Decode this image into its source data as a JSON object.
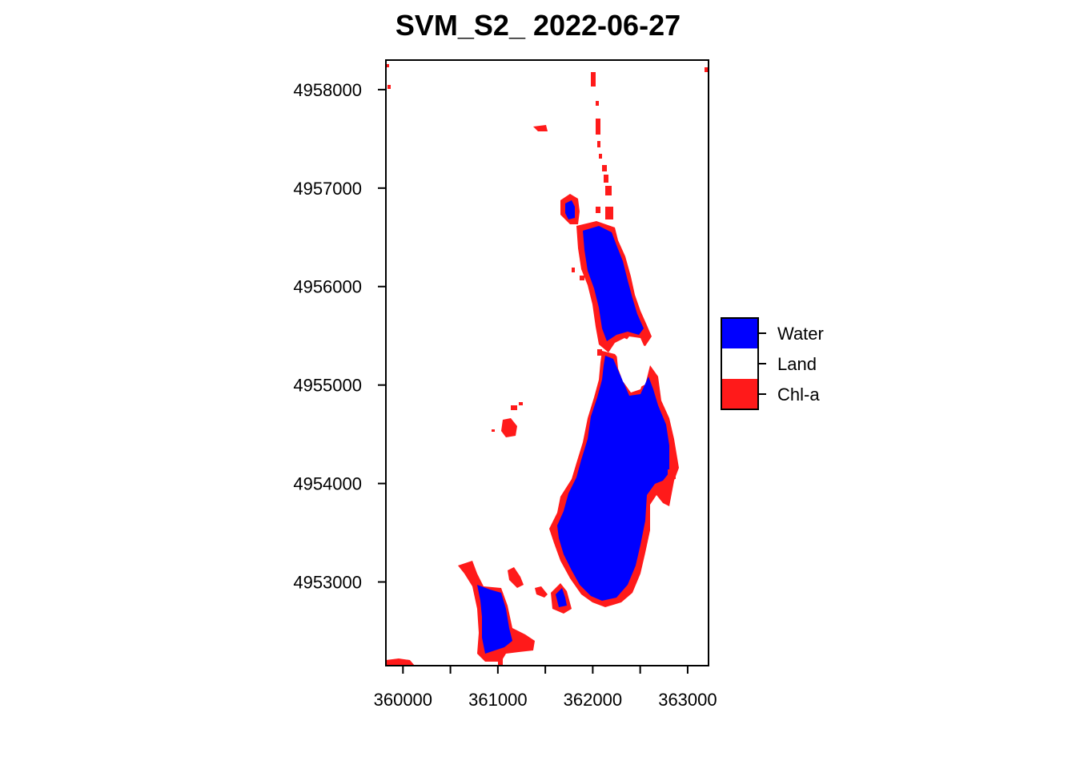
{
  "title": "SVM_S2_ 2022-06-27",
  "colors": {
    "water": "#0000FF",
    "land": "#FFFFFF",
    "chla": "#FF1A1A",
    "frame": "#000000"
  },
  "map": {
    "x_range": [
      359820,
      363220
    ],
    "y_range": [
      4952150,
      4958300
    ],
    "x_ticks": [
      360000,
      360500,
      361000,
      361500,
      362000,
      362500,
      363000
    ],
    "x_tick_labels": [
      "360000",
      "",
      "361000",
      "",
      "362000",
      "",
      "363000"
    ],
    "y_ticks": [
      4953000,
      4954000,
      4955000,
      4956000,
      4957000,
      4958000
    ],
    "y_tick_labels": [
      "4953000",
      "4954000",
      "4955000",
      "4956000",
      "4957000",
      "4958000"
    ]
  },
  "legend": {
    "items": [
      {
        "label": "Water",
        "color_key": "water"
      },
      {
        "label": "Land",
        "color_key": "land"
      },
      {
        "label": "Chl-a",
        "color_key": "chla"
      }
    ]
  }
}
